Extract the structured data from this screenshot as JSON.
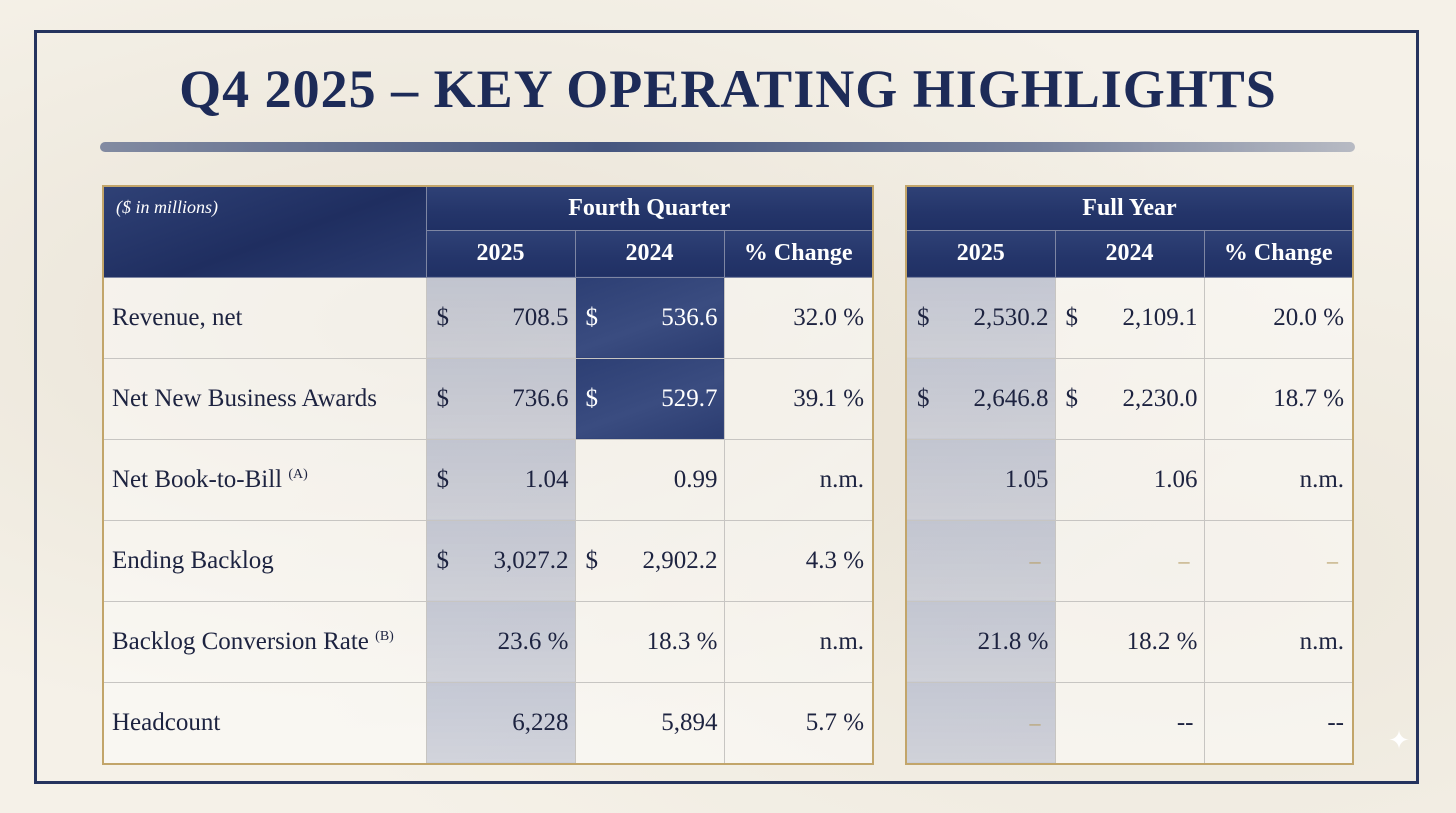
{
  "title": "Q4 2025 – KEY OPERATING HIGHLIGHTS",
  "units_note": "($ in millions)",
  "fourth_quarter": {
    "group_label": "Fourth Quarter",
    "col_2025": "2025",
    "col_2024": "2024",
    "col_change": "% Change"
  },
  "full_year": {
    "group_label": "Full Year",
    "col_2025": "2025",
    "col_2024": "2024",
    "col_change": "% Change"
  },
  "rows": [
    {
      "label": "Revenue, net",
      "note": "",
      "q_2025": {
        "cur": "$",
        "val": "708.5"
      },
      "q_2024": {
        "cur": "$",
        "val": "536.6"
      },
      "q_change": "32.0 %",
      "fy_2025": {
        "cur": "$",
        "val": "2,530.2"
      },
      "fy_2024": {
        "cur": "$",
        "val": "2,109.1"
      },
      "fy_change": "20.0 %"
    },
    {
      "label": "Net New Business Awards",
      "note": "",
      "q_2025": {
        "cur": "$",
        "val": "736.6"
      },
      "q_2024": {
        "cur": "$",
        "val": "529.7"
      },
      "q_change": "39.1 %",
      "fy_2025": {
        "cur": "$",
        "val": "2,646.8"
      },
      "fy_2024": {
        "cur": "$",
        "val": "2,230.0"
      },
      "fy_change": "18.7 %"
    },
    {
      "label": "Net Book-to-Bill",
      "note": "(A)",
      "q_2025": {
        "cur": "$",
        "val": "1.04"
      },
      "q_2024": {
        "cur": "",
        "val": "0.99"
      },
      "q_change": "n.m.",
      "fy_2025": {
        "cur": "",
        "val": "1.05"
      },
      "fy_2024": {
        "cur": "",
        "val": "1.06"
      },
      "fy_change": "n.m."
    },
    {
      "label": "Ending Backlog",
      "note": "",
      "q_2025": {
        "cur": "$",
        "val": "3,027.2"
      },
      "q_2024": {
        "cur": "$",
        "val": "2,902.2"
      },
      "q_change": "4.3 %",
      "fy_2025": {
        "cur": "",
        "val": "–"
      },
      "fy_2024": {
        "cur": "",
        "val": "–"
      },
      "fy_change": "–"
    },
    {
      "label": "Backlog Conversion Rate",
      "note": "(B)",
      "q_2025": {
        "cur": "",
        "val": "23.6 %"
      },
      "q_2024": {
        "cur": "",
        "val": "18.3 %"
      },
      "q_change": "n.m.",
      "fy_2025": {
        "cur": "",
        "val": "21.8 %"
      },
      "fy_2024": {
        "cur": "",
        "val": "18.2 %"
      },
      "fy_change": "n.m."
    },
    {
      "label": "Headcount",
      "note": "",
      "q_2025": {
        "cur": "",
        "val": "6,228"
      },
      "q_2024": {
        "cur": "",
        "val": "5,894"
      },
      "q_change": "5.7 %",
      "fy_2025": {
        "cur": "",
        "val": "–"
      },
      "fy_2024": {
        "cur": "",
        "val": "--"
      },
      "fy_change": "--"
    }
  ],
  "colors": {
    "navy": "#24356a",
    "gold_border": "#c2a56a",
    "paper": "#f5f1e8"
  }
}
